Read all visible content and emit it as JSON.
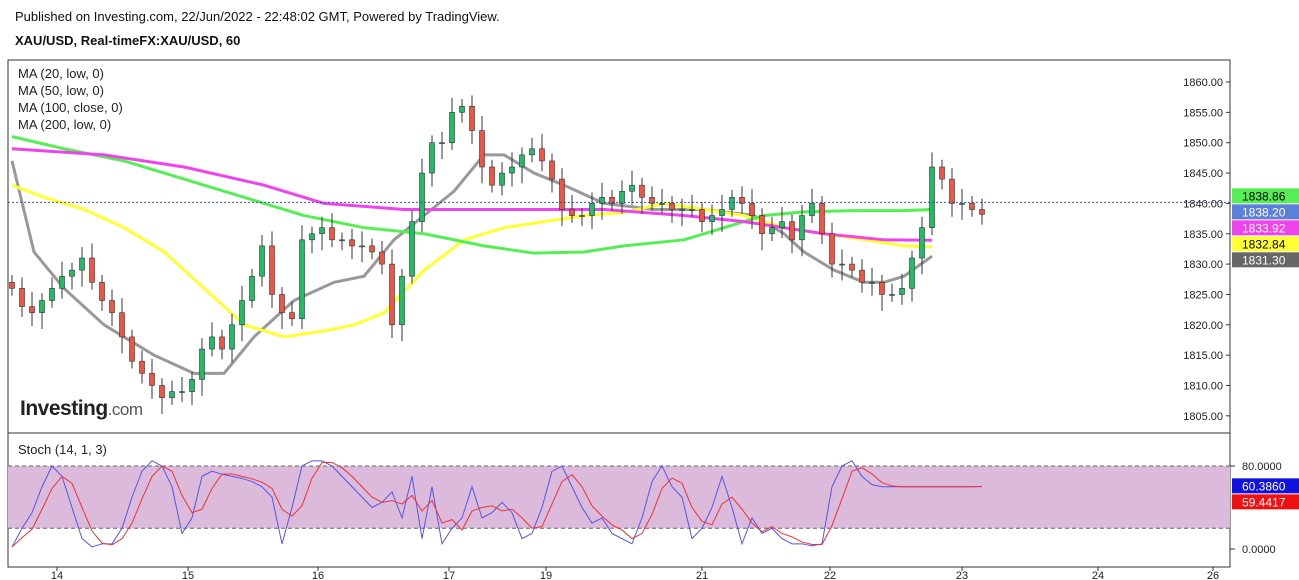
{
  "header": {
    "published": "Published on Investing.com, 22/Jun/2022 - 22:48:02 GMT, Powered by TradingView.",
    "symbol": "XAU/USD, Real-timeFX:XAU/USD, 60"
  },
  "legend": [
    "MA (20, low, 0)",
    "MA (50, low, 0)",
    "MA (100, close, 0)",
    "MA (200, low, 0)"
  ],
  "logo": {
    "main": "Investing",
    "suffix": ".com"
  },
  "stoch_label": "Stoch (14, 1, 3)",
  "chart_data": {
    "type": "candlestick",
    "title": "XAU/USD, Real-timeFX:XAU/USD, 60",
    "ylim": [
      1801,
      1863
    ],
    "y_ticks": [
      "1860.00",
      "1855.00",
      "1850.00",
      "1845.00",
      "1840.00",
      "1835.00",
      "1830.00",
      "1825.00",
      "1820.00",
      "1815.00",
      "1810.00",
      "1805.00"
    ],
    "x_ticks": [
      "14",
      "15",
      "16",
      "17",
      "19",
      "21",
      "22",
      "23",
      "24",
      "26"
    ],
    "closes": [
      1826,
      1823,
      1822,
      1824,
      1826,
      1828,
      1829,
      1831,
      1827,
      1824,
      1822,
      1818,
      1814,
      1812,
      1810,
      1808,
      1809,
      1809,
      1811,
      1816,
      1818,
      1816,
      1820,
      1824,
      1828,
      1833,
      1825,
      1822,
      1821,
      1834,
      1835,
      1836,
      1834,
      1834,
      1833,
      1833,
      1832,
      1830,
      1820,
      1828,
      1837,
      1845,
      1850,
      1850,
      1855,
      1856,
      1852,
      1846,
      1843,
      1845,
      1846,
      1848,
      1849,
      1847,
      1844,
      1839,
      1838,
      1838,
      1840,
      1841,
      1840,
      1842,
      1843,
      1841,
      1840,
      1840,
      1839,
      1839,
      1839,
      1837,
      1838,
      1839,
      1841,
      1840,
      1838,
      1835,
      1836,
      1837,
      1834,
      1838,
      1840,
      1835,
      1830,
      1830,
      1829,
      1827,
      1827,
      1825,
      1825,
      1826,
      1831,
      1836,
      1846,
      1844,
      1840,
      1840,
      1839,
      1838.2
    ],
    "ma": [
      {
        "name": "MA (20, low, 0)",
        "color": "#999999",
        "last": "1831.30",
        "points": [
          [
            0,
            1847
          ],
          [
            2.2,
            1832
          ],
          [
            5.2,
            1826
          ],
          [
            9.2,
            1820
          ],
          [
            14.2,
            1815
          ],
          [
            18.2,
            1812
          ],
          [
            21.2,
            1812
          ],
          [
            24.2,
            1818
          ],
          [
            28.2,
            1824
          ],
          [
            32.2,
            1827
          ],
          [
            35.2,
            1828
          ],
          [
            38.2,
            1834
          ],
          [
            41.2,
            1838
          ],
          [
            44.2,
            1842
          ],
          [
            47.2,
            1848
          ],
          [
            49.2,
            1848
          ],
          [
            52.2,
            1845
          ],
          [
            55.2,
            1843
          ],
          [
            59.2,
            1840
          ],
          [
            64.2,
            1839
          ],
          [
            69.2,
            1839
          ],
          [
            74.2,
            1838
          ],
          [
            77.2,
            1835
          ],
          [
            79.2,
            1832
          ],
          [
            82.2,
            1829
          ],
          [
            85.2,
            1827
          ],
          [
            87.2,
            1827
          ],
          [
            89.2,
            1828
          ],
          [
            92,
            1831.3
          ]
        ]
      },
      {
        "name": "MA (50, low, 0)",
        "color": "#ffff33",
        "last": "1832.84",
        "points": [
          [
            0,
            1843
          ],
          [
            3.2,
            1841
          ],
          [
            7.2,
            1839
          ],
          [
            11.2,
            1836
          ],
          [
            15.2,
            1832
          ],
          [
            19.2,
            1826
          ],
          [
            23.2,
            1820
          ],
          [
            27.2,
            1818
          ],
          [
            31.2,
            1819
          ],
          [
            34.2,
            1820
          ],
          [
            37.2,
            1822
          ],
          [
            41.2,
            1829
          ],
          [
            45.2,
            1834
          ],
          [
            49.2,
            1836
          ],
          [
            53.2,
            1837
          ],
          [
            57.2,
            1838
          ],
          [
            61.2,
            1838.5
          ],
          [
            65.2,
            1840
          ],
          [
            69.2,
            1839
          ],
          [
            73.2,
            1838
          ],
          [
            77.2,
            1836
          ],
          [
            81.2,
            1835
          ],
          [
            85.2,
            1834
          ],
          [
            89.2,
            1833
          ],
          [
            92,
            1832.84
          ]
        ]
      },
      {
        "name": "MA (100, close, 0)",
        "color": "#55ee55",
        "last": "1838.86",
        "points": [
          [
            0,
            1851
          ],
          [
            5.2,
            1849
          ],
          [
            11.2,
            1847
          ],
          [
            17.2,
            1844
          ],
          [
            23.2,
            1841
          ],
          [
            29.2,
            1838
          ],
          [
            35.2,
            1836
          ],
          [
            41.2,
            1835
          ],
          [
            47.2,
            1833
          ],
          [
            52.2,
            1831.8
          ],
          [
            57.2,
            1832
          ],
          [
            61.2,
            1833
          ],
          [
            67.2,
            1834
          ],
          [
            71.2,
            1836
          ],
          [
            75.2,
            1838
          ],
          [
            79.2,
            1838.6
          ],
          [
            84.2,
            1838.8
          ],
          [
            89.2,
            1838.8
          ],
          [
            92,
            1839
          ]
        ]
      },
      {
        "name": "MA (200, low, 0)",
        "color": "#ee44ee",
        "last": "1833.92",
        "points": [
          [
            0,
            1849
          ],
          [
            9.2,
            1848
          ],
          [
            17.2,
            1846
          ],
          [
            25.2,
            1843
          ],
          [
            31.2,
            1840
          ],
          [
            39.2,
            1839
          ],
          [
            49.2,
            1839
          ],
          [
            59.2,
            1839
          ],
          [
            67.2,
            1838
          ],
          [
            73.2,
            1837
          ],
          [
            77.2,
            1836
          ],
          [
            81.2,
            1835
          ],
          [
            87.2,
            1834
          ],
          [
            92,
            1833.92
          ]
        ]
      }
    ],
    "last_price": {
      "value": "1838.20",
      "color": "#5b7fdb"
    },
    "stoch": {
      "ylim": [
        -5,
        100
      ],
      "y_ticks": [
        "80.0000",
        "0.0000"
      ],
      "k_last": "60.3860",
      "d_last": "59.4417",
      "bands": [
        20,
        80
      ],
      "k": [
        2,
        20,
        35,
        60,
        80,
        70,
        40,
        10,
        2,
        5,
        5,
        20,
        50,
        75,
        85,
        80,
        60,
        15,
        30,
        70,
        75,
        72,
        70,
        68,
        65,
        60,
        50,
        5,
        40,
        80,
        85,
        85,
        80,
        70,
        60,
        50,
        40,
        45,
        55,
        30,
        70,
        10,
        60,
        5,
        20,
        30,
        60,
        30,
        35,
        45,
        35,
        10,
        15,
        40,
        75,
        80,
        60,
        40,
        25,
        30,
        15,
        10,
        5,
        30,
        65,
        80,
        60,
        50,
        10,
        20,
        40,
        70,
        40,
        5,
        30,
        15,
        20,
        10,
        5,
        5,
        3,
        5,
        60,
        80,
        85,
        70,
        62,
        60,
        60,
        60,
        60,
        60,
        60,
        60,
        60,
        60,
        60,
        60.4
      ]
    }
  }
}
